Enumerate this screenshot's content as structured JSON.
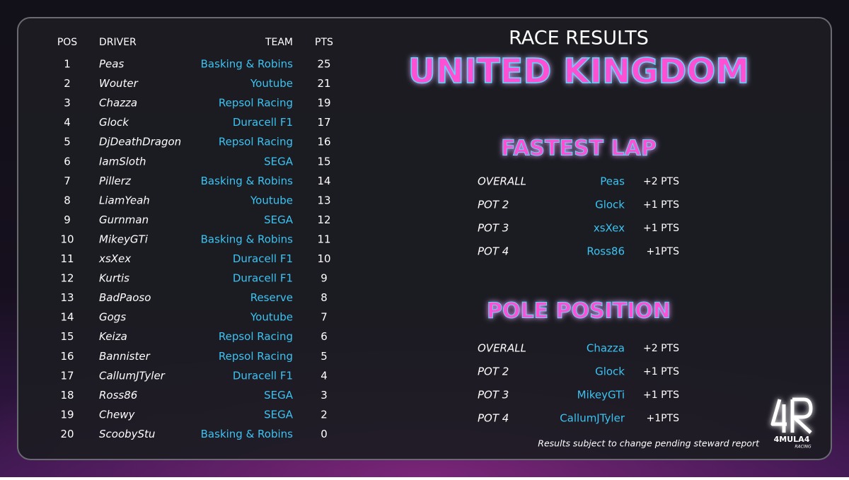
{
  "standings": {
    "headers": [
      "POS",
      "DRIVER",
      "TEAM",
      "PTS"
    ],
    "rows": [
      [
        "1",
        "Peas",
        "Basking & Robins",
        "25"
      ],
      [
        "2",
        "Wouter",
        "Youtube",
        "21"
      ],
      [
        "3",
        "Chazza",
        "Repsol Racing",
        "19"
      ],
      [
        "4",
        "Glock",
        "Duracell F1",
        "17"
      ],
      [
        "5",
        "DjDeathDragon",
        "Repsol Racing",
        "16"
      ],
      [
        "6",
        "IamSloth",
        "SEGA",
        "15"
      ],
      [
        "7",
        "Pillerz",
        "Basking & Robins",
        "14"
      ],
      [
        "8",
        "LiamYeah",
        "Youtube",
        "13"
      ],
      [
        "9",
        "Gurnman",
        "SEGA",
        "12"
      ],
      [
        "10",
        "MikeyGTi",
        "Basking & Robins",
        "11"
      ],
      [
        "11",
        "xsXex",
        "Duracell F1",
        "10"
      ],
      [
        "12",
        "Kurtis",
        "Duracell F1",
        "9"
      ],
      [
        "13",
        "BadPaoso",
        "Reserve",
        "8"
      ],
      [
        "14",
        "Gogs",
        "Youtube",
        "7"
      ],
      [
        "15",
        "Keiza",
        "Repsol Racing",
        "6"
      ],
      [
        "16",
        "Bannister",
        "Repsol Racing",
        "5"
      ],
      [
        "17",
        "CallumJTyler",
        "Duracell F1",
        "4"
      ],
      [
        "18",
        "Ross86",
        "SEGA",
        "3"
      ],
      [
        "19",
        "Chewy",
        "SEGA",
        "2"
      ],
      [
        "20",
        "ScoobyStu",
        "Basking & Robins",
        "0"
      ]
    ]
  },
  "header": {
    "title": "RACE RESULTS",
    "subtitle": "UNITED KINGDOM"
  },
  "fastest_lap": {
    "title": "FASTEST LAP",
    "rows": [
      [
        "OVERALL",
        "Peas",
        "+2 PTS"
      ],
      [
        "POT 2",
        "Glock",
        "+1 PTS"
      ],
      [
        "POT 3",
        "xsXex",
        "+1 PTS"
      ],
      [
        "POT 4",
        "Ross86",
        "+1PTS"
      ]
    ]
  },
  "pole_position": {
    "title": "POLE POSITION",
    "rows": [
      [
        "OVERALL",
        "Chazza",
        "+2 PTS"
      ],
      [
        "POT 2",
        "Glock",
        "+1 PTS"
      ],
      [
        "POT 3",
        "MikeyGTi",
        "+1 PTS"
      ],
      [
        "POT 4",
        "CallumJTyler",
        "+1PTS"
      ]
    ]
  },
  "footer": {
    "note": "Results subject to change pending steward report"
  },
  "logo": {
    "name": "4MULA4",
    "tagline": "RACING"
  }
}
